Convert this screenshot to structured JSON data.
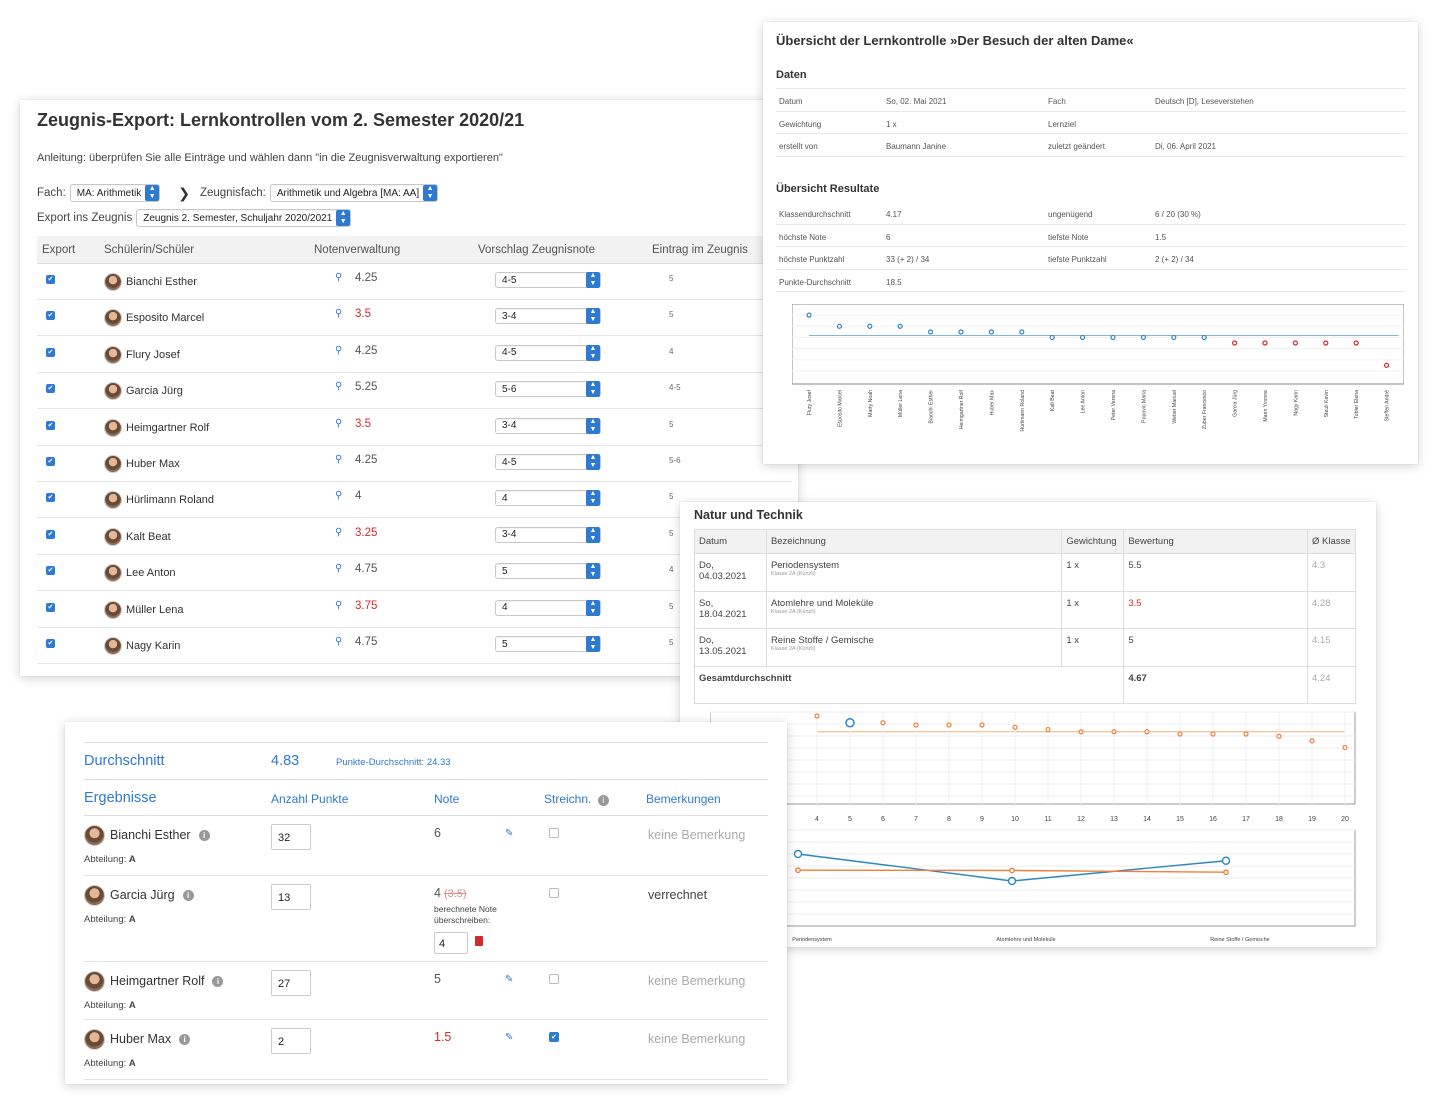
{
  "export_card": {
    "title": "Zeugnis-Export: Lernkontrollen vom 2. Semester 2020/21",
    "instruction": "Anleitung: überprüfen Sie alle Einträge und wählen dann \"in die Zeugnisverwaltung exportieren\"",
    "fach_label": "Fach:",
    "fach_value": "MA: Arithmetik",
    "zeugnisfach_label": "Zeugnisfach:",
    "zeugnisfach_value": "Arithmetik und Algebra [MA: AA]",
    "export_label": "Export ins Zeugnis",
    "export_value": "Zeugnis 2. Semester, Schuljahr 2020/2021",
    "columns": [
      "Export",
      "Schülerin/Schüler",
      "Notenverwaltung",
      "Vorschlag Zeugnisnote",
      "Eintrag im Zeugnis"
    ],
    "rows": [
      {
        "name": "Bianchi Esther",
        "grade": "4.25",
        "red": false,
        "proposal": "4-5",
        "entry": "5"
      },
      {
        "name": "Esposito Marcel",
        "grade": "3.5",
        "red": true,
        "proposal": "3-4",
        "entry": "5"
      },
      {
        "name": "Flury Josef",
        "grade": "4.25",
        "red": false,
        "proposal": "4-5",
        "entry": "4"
      },
      {
        "name": "Garcia Jürg",
        "grade": "5.25",
        "red": false,
        "proposal": "5-6",
        "entry": "4-5"
      },
      {
        "name": "Heimgartner Rolf",
        "grade": "3.5",
        "red": true,
        "proposal": "3-4",
        "entry": "5"
      },
      {
        "name": "Huber Max",
        "grade": "4.25",
        "red": false,
        "proposal": "4-5",
        "entry": "5-6"
      },
      {
        "name": "Hürlimann Roland",
        "grade": "4",
        "red": false,
        "proposal": "4",
        "entry": "5"
      },
      {
        "name": "Kalt Beat",
        "grade": "3.25",
        "red": true,
        "proposal": "3-4",
        "entry": "5"
      },
      {
        "name": "Lee Anton",
        "grade": "4.75",
        "red": false,
        "proposal": "5",
        "entry": "4"
      },
      {
        "name": "Müller Lena",
        "grade": "3.75",
        "red": true,
        "proposal": "4",
        "entry": "5"
      },
      {
        "name": "Nagy Karin",
        "grade": "4.75",
        "red": false,
        "proposal": "5",
        "entry": "5"
      }
    ]
  },
  "overview_card": {
    "title": "Übersicht der Lernkontrolle »Der Besuch der alten Dame«",
    "daten_title": "Daten",
    "daten": [
      [
        "Datum",
        "So, 02. Mai 2021",
        "Fach",
        "Deutsch [D], Leseverstehen"
      ],
      [
        "Gewichtung",
        "1 x",
        "Lernziel",
        ""
      ],
      [
        "erstellt von",
        "Baumann Janine",
        "zuletzt geändert",
        "Di, 06. April 2021"
      ]
    ],
    "results_title": "Übersicht Resultate",
    "results": [
      [
        "Klassendurchschnitt",
        "4.17",
        "ungenügend",
        "6 / 20 (30 %)"
      ],
      [
        "höchste Note",
        "6",
        "tiefste Note",
        "1.5"
      ],
      [
        "höchste Punktzahl",
        "33 (+ 2) / 34",
        "tiefste Punktzahl",
        "2 (+ 2) / 34"
      ],
      [
        "Punkte-Durchschnitt",
        "18.5",
        "",
        ""
      ]
    ]
  },
  "natur_card": {
    "title": "Natur und Technik",
    "columns": [
      "Datum",
      "Bezeichnung",
      "Gewichtung",
      "Bewertung",
      "Ø Klasse"
    ],
    "rows": [
      {
        "date1": "Do,",
        "date2": "04.03.2021",
        "name": "Periodensystem",
        "sub": "Klasse 2A (Künzli)",
        "weight": "1 x",
        "grade": "5.5",
        "red": false,
        "avg": "4.3"
      },
      {
        "date1": "So,",
        "date2": "18.04.2021",
        "name": "Atomlehre und Moleküle",
        "sub": "Klasse 2A (Künzli)",
        "weight": "1 x",
        "grade": "3.5",
        "red": true,
        "avg": "4.28"
      },
      {
        "date1": "Do,",
        "date2": "13.05.2021",
        "name": "Reine Stoffe / Gemische",
        "sub": "Klasse 2A (Künzli)",
        "weight": "1 x",
        "grade": "5",
        "red": false,
        "avg": "4.15"
      }
    ],
    "total_label": "Gesamtdurchschnitt",
    "total_grade": "4.67",
    "total_avg": "4.24"
  },
  "results_card": {
    "avg_label": "Durchschnitt",
    "avg_value": "4.83",
    "points_avg": "Punkte-Durchschnitt: 24.33",
    "columns": [
      "Ergebnisse",
      "Anzahl Punkte",
      "Note",
      "Streichn.",
      "Bemerkungen"
    ],
    "abteilung_label": "Abteilung:",
    "rows": [
      {
        "name": "Bianchi Esther",
        "abt": "A",
        "points": "32",
        "note": "6",
        "red": false,
        "struck": "",
        "override_label": "",
        "override_value": "",
        "checked": false,
        "remark": "keine Bemerkung",
        "remark_dark": false
      },
      {
        "name": "Garcia Jürg",
        "abt": "A",
        "points": "13",
        "note": "4",
        "red": false,
        "struck": "(3.5)",
        "override_label": "berechnete Note überschreiben:",
        "override_value": "4",
        "checked": false,
        "remark": "verrechnet",
        "remark_dark": true
      },
      {
        "name": "Heimgartner Rolf",
        "abt": "A",
        "points": "27",
        "note": "5",
        "red": false,
        "struck": "",
        "override_label": "",
        "override_value": "",
        "checked": false,
        "remark": "keine Bemerkung",
        "remark_dark": false
      },
      {
        "name": "Huber Max",
        "abt": "A",
        "points": "2",
        "note": "1.5",
        "red": true,
        "struck": "",
        "override_label": "",
        "override_value": "",
        "checked": true,
        "remark": "keine Bemerkung",
        "remark_dark": false
      }
    ]
  },
  "chart_data": [
    {
      "type": "scatter",
      "title": "",
      "categories": [
        "Flury Josef",
        "Esposito Marcel",
        "Marty Noah",
        "Müller Lena",
        "Bianchi Esther",
        "Heimgartner Rolf",
        "Huber Max",
        "Hürlimann Roland",
        "Kalt Beat",
        "Lee Anton",
        "Peter Verena",
        "Popovic Maria",
        "Weber Manuel",
        "Zuber Francesco",
        "Garcia Jürg",
        "Marin Yvonne",
        "Nagy Karin",
        "Steuli Kevin",
        "Tobler Elena",
        "Steffen André"
      ],
      "values": [
        6,
        5,
        5,
        5,
        4.5,
        4.5,
        4.5,
        4.5,
        4,
        4,
        4,
        4,
        4,
        4,
        3.5,
        3.5,
        3.5,
        3.5,
        3.5,
        1.5
      ],
      "average": 4.17,
      "ylim": [
        1,
        6
      ],
      "yticks": [
        "1",
        "2",
        "3",
        "4",
        "5",
        "6"
      ],
      "colors": {
        "pass": "#2e86c1",
        "fail": "#d62728",
        "avg_line": "#7fb8e0"
      }
    },
    {
      "type": "scatter",
      "x": [
        4,
        5,
        6,
        7,
        8,
        9,
        10,
        11,
        12,
        13,
        14,
        15,
        16,
        17,
        18,
        19,
        20
      ],
      "values": [
        5.4,
        5.25,
        5.25,
        5.2,
        5.2,
        5.2,
        5.15,
        5.1,
        5.05,
        5.05,
        5.05,
        5.0,
        5.0,
        5.0,
        4.95,
        4.85,
        4.7
      ],
      "highlight_x": 5,
      "xticks": [
        "4",
        "5",
        "6",
        "7",
        "8",
        "9",
        "10",
        "11",
        "12",
        "13",
        "14",
        "15",
        "16",
        "17",
        "18",
        "19",
        "20"
      ],
      "colors": {
        "points": "#f07f3c",
        "highlight": "#2e86c1",
        "line": "#f0b27a"
      }
    },
    {
      "type": "line",
      "categories": [
        "Periodensystem",
        "Atomlehre und Moleküle",
        "Reine Stoffe / Gemische"
      ],
      "series": [
        {
          "values": [
            5.5,
            3.5,
            5
          ],
          "color": "#2e86c1"
        },
        {
          "values": [
            4.3,
            4.28,
            4.15
          ],
          "color": "#f07f3c"
        }
      ],
      "ylim": [
        3,
        6
      ]
    }
  ]
}
